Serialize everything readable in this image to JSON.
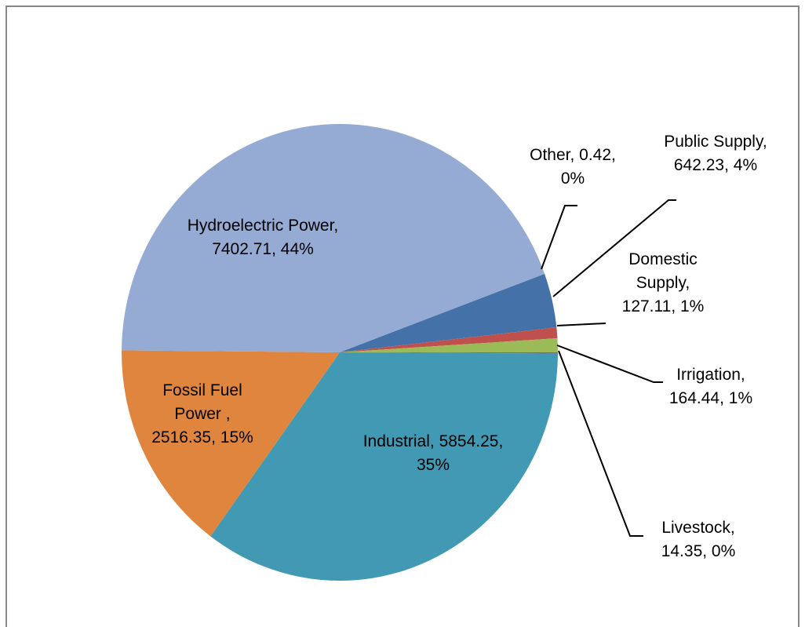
{
  "chart_data": {
    "type": "pie",
    "values": [
      14.35,
      5854.25,
      2516.35,
      7402.71,
      0.42,
      642.23,
      127.11,
      164.44
    ],
    "value_labels": [
      "Livestock, 14.35, 0%",
      "Industrial, 5854.25, 35%",
      "Fossil Fuel Power , 2516.35, 15%",
      "Hydroelectric Power, 7402.71, 44%",
      "Other, 0.42, 0%",
      "Public Supply, 642.23, 4%",
      "Domestic Supply, 127.11, 1%",
      "Irrigation, 164.44, 1%"
    ],
    "colors": [
      "#8064a2",
      "#4299b3",
      "#e0853e",
      "#95abd4",
      "#4bacc6",
      "#4472a8",
      "#c0504d",
      "#9bbb59"
    ]
  }
}
